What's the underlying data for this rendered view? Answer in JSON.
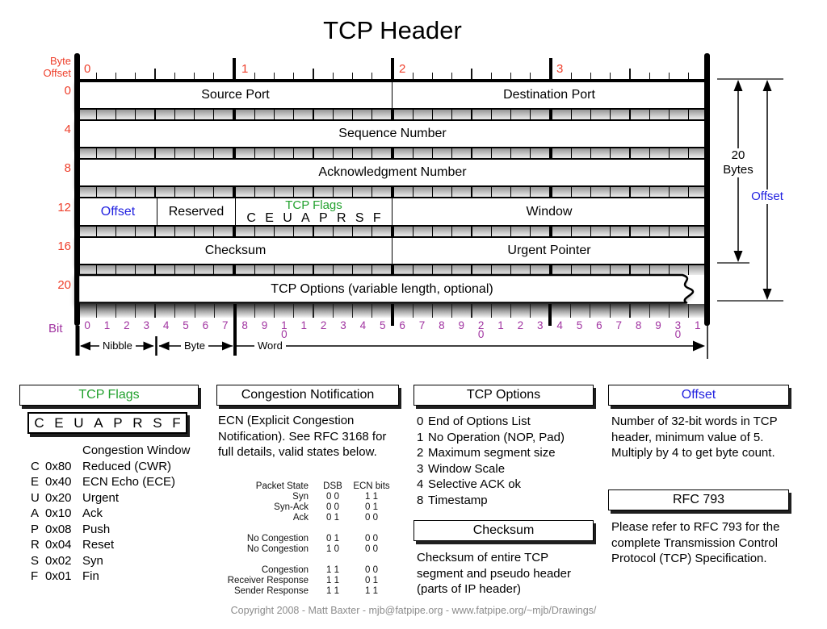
{
  "title": "TCP Header",
  "colors": {
    "red": "#ee3e2a",
    "blue": "#2222e0",
    "green": "#22a12e",
    "purple": "#a134a1",
    "footer_gray": "#8c8c8c"
  },
  "byte_offset": {
    "label": "Byte\nOffset",
    "rows": [
      "0",
      "4",
      "8",
      "12",
      "16",
      "20"
    ],
    "top_numbers": [
      "0",
      "1",
      "2",
      "3"
    ]
  },
  "header_rows": {
    "row0": {
      "left": "Source Port",
      "right": "Destination Port"
    },
    "row4": "Sequence Number",
    "row8": "Acknowledgment Number",
    "row12": {
      "offset": "Offset",
      "reserved": "Reserved",
      "flags_title": "TCP Flags",
      "letters": [
        "C",
        "E",
        "U",
        "A",
        "P",
        "R",
        "S",
        "F"
      ],
      "window": "Window"
    },
    "row16": {
      "left": "Checksum",
      "right": "Urgent Pointer"
    },
    "row20": "TCP Options (variable length, optional)"
  },
  "dimensions": {
    "bytes_label": "20\nBytes",
    "offset_label": "Offset"
  },
  "bit_ruler": {
    "label": "Bit",
    "numbers": [
      "0",
      "1",
      "2",
      "3",
      "4",
      "5",
      "6",
      "7",
      "8",
      "9",
      "1\n0",
      "1",
      "2",
      "3",
      "4",
      "5",
      "6",
      "7",
      "8",
      "9",
      "2\n0",
      "1",
      "2",
      "3",
      "4",
      "5",
      "6",
      "7",
      "8",
      "9",
      "3\n0",
      "1"
    ],
    "units": {
      "nibble": "Nibble",
      "byte": "Byte",
      "word": "Word"
    }
  },
  "panels": {
    "tcp_flags": {
      "title": "TCP Flags",
      "legend": [
        {
          "letter": "",
          "hex": "",
          "desc": "Congestion Window"
        },
        {
          "letter": "C",
          "hex": "0x80",
          "desc": "Reduced (CWR)"
        },
        {
          "letter": "E",
          "hex": "0x40",
          "desc": "ECN Echo (ECE)"
        },
        {
          "letter": "U",
          "hex": "0x20",
          "desc": "Urgent"
        },
        {
          "letter": "A",
          "hex": "0x10",
          "desc": "Ack"
        },
        {
          "letter": "P",
          "hex": "0x08",
          "desc": "Push"
        },
        {
          "letter": "R",
          "hex": "0x04",
          "desc": "Reset"
        },
        {
          "letter": "S",
          "hex": "0x02",
          "desc": "Syn"
        },
        {
          "letter": "F",
          "hex": "0x01",
          "desc": "Fin"
        }
      ]
    },
    "congestion": {
      "title": "Congestion Notification",
      "body": "ECN (Explicit Congestion Notification).  See RFC 3168 for full details, valid states below.",
      "table": {
        "headers": {
          "state": "Packet State",
          "dsb": "DSB",
          "ecn": "ECN bits"
        },
        "rows": [
          {
            "state": "Syn",
            "dsb": "0 0",
            "ecn": "1 1"
          },
          {
            "state": "Syn-Ack",
            "dsb": "0 0",
            "ecn": "0 1"
          },
          {
            "state": "Ack",
            "dsb": "0 1",
            "ecn": "0 0"
          },
          {
            "state": "",
            "dsb": "",
            "ecn": ""
          },
          {
            "state": "No Congestion",
            "dsb": "0 1",
            "ecn": "0 0"
          },
          {
            "state": "No Congestion",
            "dsb": "1 0",
            "ecn": "0 0"
          },
          {
            "state": "",
            "dsb": "",
            "ecn": ""
          },
          {
            "state": "Congestion",
            "dsb": "1 1",
            "ecn": "0 0"
          },
          {
            "state": "Receiver Response",
            "dsb": "1 1",
            "ecn": "0 1"
          },
          {
            "state": "Sender Response",
            "dsb": "1 1",
            "ecn": "1 1"
          }
        ]
      }
    },
    "tcp_options": {
      "title": "TCP Options",
      "items": [
        {
          "num": "0",
          "desc": "End of Options List"
        },
        {
          "num": "1",
          "desc": "No Operation (NOP, Pad)"
        },
        {
          "num": "2",
          "desc": "Maximum segment size"
        },
        {
          "num": "3",
          "desc": "Window Scale"
        },
        {
          "num": "4",
          "desc": "Selective ACK ok"
        },
        {
          "num": "8",
          "desc": "Timestamp"
        }
      ]
    },
    "checksum": {
      "title": "Checksum",
      "body": "Checksum of entire TCP segment and pseudo header (parts of IP header)"
    },
    "offset": {
      "title": "Offset",
      "body": "Number of 32-bit words in TCP header, minimum value of 5.  Multiply by 4 to get byte count."
    },
    "rfc": {
      "title": "RFC 793",
      "body": "Please refer to RFC 793 for the complete Transmission Control Protocol (TCP) Specification."
    }
  },
  "footer": "Copyright 2008 - Matt Baxter - mjb@fatpipe.org - www.fatpipe.org/~mjb/Drawings/"
}
